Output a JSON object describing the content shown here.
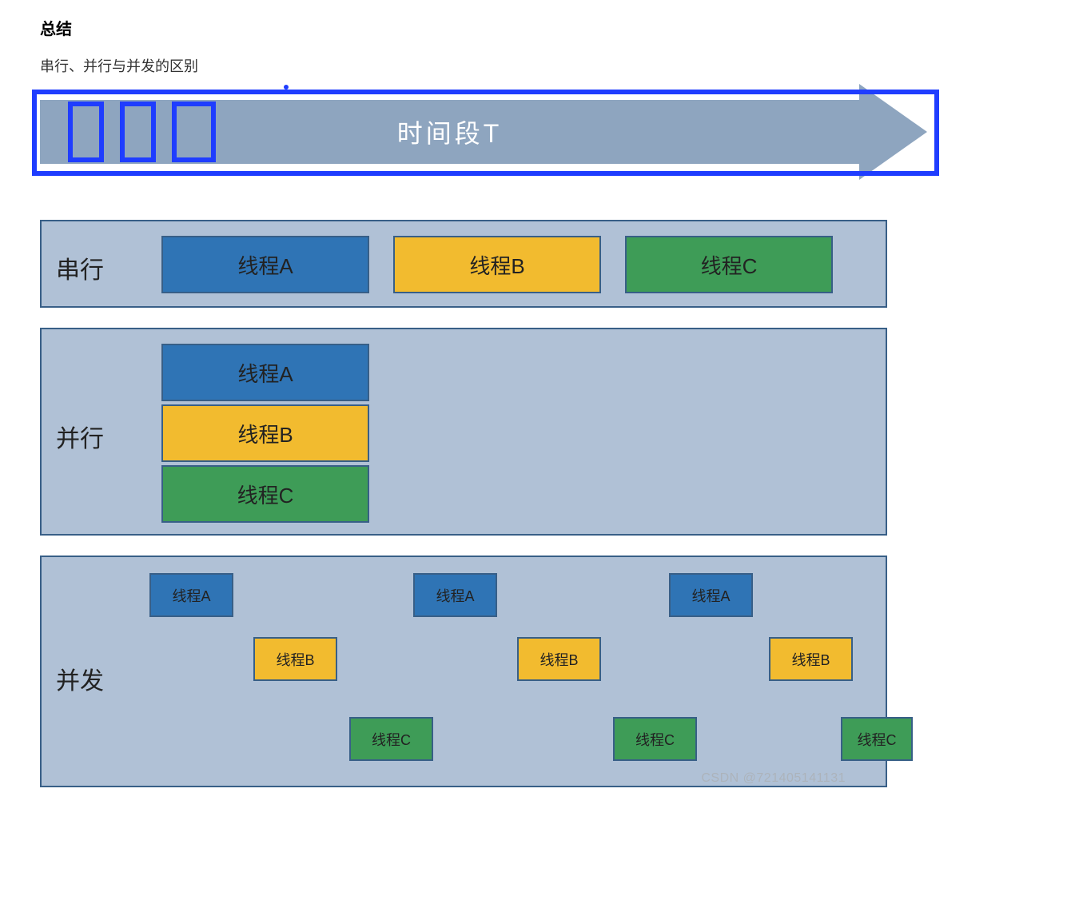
{
  "title": "总结",
  "subtitle": "串行、并行与并发的区别",
  "arrow_label": "时间段T",
  "colors": {
    "panel_bg": "#b0c1d6",
    "panel_border": "#385f87",
    "arrow": "#8ea5bf",
    "highlight_border": "#1f3dff",
    "thread_a": "#2f74b5",
    "thread_b": "#f2bb2f",
    "thread_c": "#3e9c57",
    "text": "#222222",
    "arrow_text": "#ffffff"
  },
  "panels": {
    "serial": {
      "label": "串行",
      "threads": [
        {
          "label": "线程A",
          "color": "#2f74b5"
        },
        {
          "label": "线程B",
          "color": "#f2bb2f"
        },
        {
          "label": "线程C",
          "color": "#3e9c57"
        }
      ]
    },
    "parallel": {
      "label": "并行",
      "threads": [
        {
          "label": "线程A",
          "color": "#2f74b5"
        },
        {
          "label": "线程B",
          "color": "#f2bb2f"
        },
        {
          "label": "线程C",
          "color": "#3e9c57"
        }
      ]
    },
    "concurrent": {
      "label": "并发",
      "cycles": [
        [
          {
            "label": "线程A",
            "color": "#2f74b5"
          },
          {
            "label": "线程B",
            "color": "#f2bb2f"
          },
          {
            "label": "线程C",
            "color": "#3e9c57"
          }
        ],
        [
          {
            "label": "线程A",
            "color": "#2f74b5"
          },
          {
            "label": "线程B",
            "color": "#f2bb2f"
          },
          {
            "label": "线程C",
            "color": "#3e9c57"
          }
        ],
        [
          {
            "label": "线程A",
            "color": "#2f74b5"
          },
          {
            "label": "线程B",
            "color": "#f2bb2f"
          },
          {
            "label": "线程C",
            "color": "#3e9c57"
          }
        ]
      ]
    }
  },
  "watermark": "CSDN @721405141131"
}
